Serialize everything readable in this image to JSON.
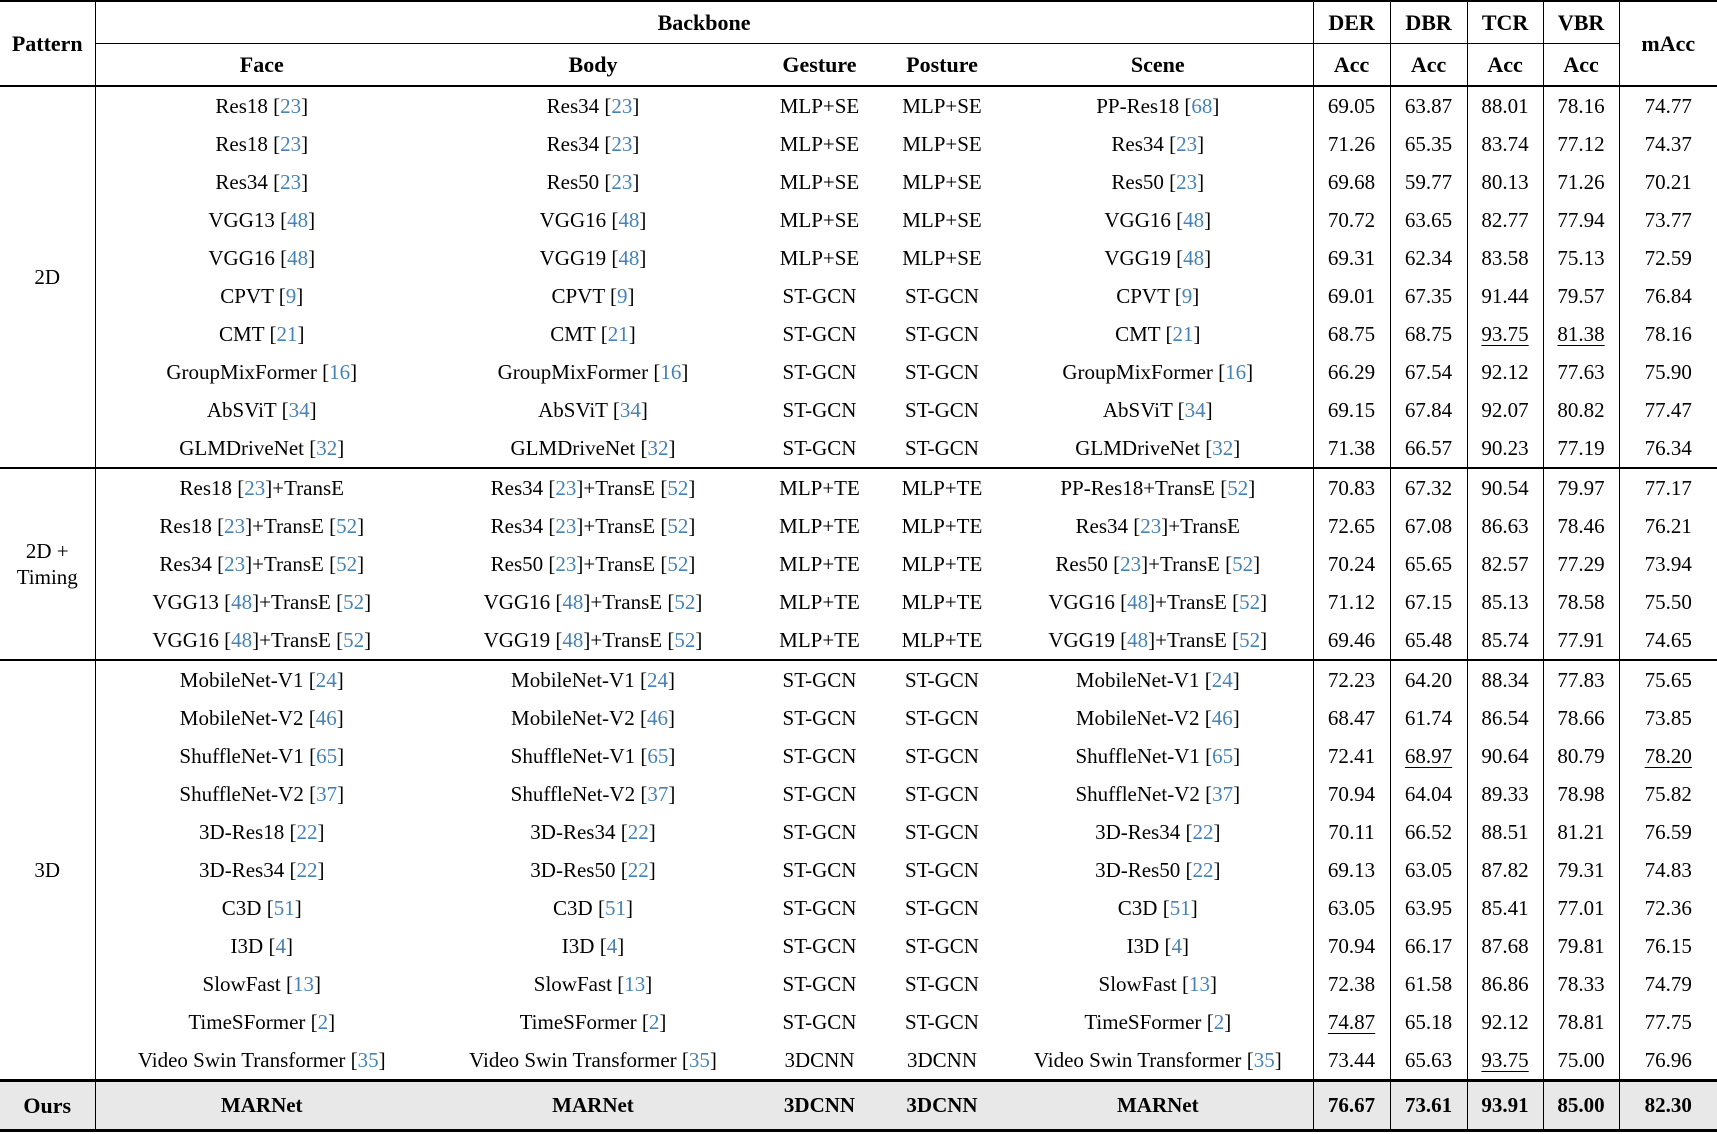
{
  "header": {
    "pattern": "Pattern",
    "backbone": "Backbone",
    "sub_columns": [
      "Face",
      "Body",
      "Gesture",
      "Posture",
      "Scene"
    ],
    "metrics": [
      "DER",
      "DBR",
      "TCR",
      "VBR"
    ],
    "metric_sub": "Acc",
    "macc": "mAcc"
  },
  "style": {
    "citation_color": "#4682b4",
    "ours_highlight_color": "#e8e8e8"
  },
  "groups": [
    {
      "pattern": "2D",
      "rows": [
        {
          "face": "Res18 [23]",
          "body": "Res34 [23]",
          "gesture": "MLP+SE",
          "posture": "MLP+SE",
          "scene": "PP-Res18 [68]",
          "values": [
            "69.05",
            "63.87",
            "88.01",
            "78.16",
            "74.77"
          ],
          "underline": []
        },
        {
          "face": "Res18 [23]",
          "body": "Res34 [23]",
          "gesture": "MLP+SE",
          "posture": "MLP+SE",
          "scene": "Res34 [23]",
          "values": [
            "71.26",
            "65.35",
            "83.74",
            "77.12",
            "74.37"
          ],
          "underline": []
        },
        {
          "face": "Res34 [23]",
          "body": "Res50 [23]",
          "gesture": "MLP+SE",
          "posture": "MLP+SE",
          "scene": "Res50 [23]",
          "values": [
            "69.68",
            "59.77",
            "80.13",
            "71.26",
            "70.21"
          ],
          "underline": []
        },
        {
          "face": "VGG13 [48]",
          "body": "VGG16 [48]",
          "gesture": "MLP+SE",
          "posture": "MLP+SE",
          "scene": "VGG16 [48]",
          "values": [
            "70.72",
            "63.65",
            "82.77",
            "77.94",
            "73.77"
          ],
          "underline": []
        },
        {
          "face": "VGG16 [48]",
          "body": "VGG19 [48]",
          "gesture": "MLP+SE",
          "posture": "MLP+SE",
          "scene": "VGG19 [48]",
          "values": [
            "69.31",
            "62.34",
            "83.58",
            "75.13",
            "72.59"
          ],
          "underline": []
        },
        {
          "face": "CPVT [9]",
          "body": "CPVT [9]",
          "gesture": "ST-GCN",
          "posture": "ST-GCN",
          "scene": "CPVT [9]",
          "values": [
            "69.01",
            "67.35",
            "91.44",
            "79.57",
            "76.84"
          ],
          "underline": []
        },
        {
          "face": "CMT [21]",
          "body": "CMT [21]",
          "gesture": "ST-GCN",
          "posture": "ST-GCN",
          "scene": "CMT [21]",
          "values": [
            "68.75",
            "68.75",
            "93.75",
            "81.38",
            "78.16"
          ],
          "underline": [
            2,
            3
          ]
        },
        {
          "face": "GroupMixFormer [16]",
          "body": "GroupMixFormer [16]",
          "gesture": "ST-GCN",
          "posture": "ST-GCN",
          "scene": "GroupMixFormer [16]",
          "values": [
            "66.29",
            "67.54",
            "92.12",
            "77.63",
            "75.90"
          ],
          "underline": []
        },
        {
          "face": "AbSViT [34]",
          "body": "AbSViT [34]",
          "gesture": "ST-GCN",
          "posture": "ST-GCN",
          "scene": "AbSViT [34]",
          "values": [
            "69.15",
            "67.84",
            "92.07",
            "80.82",
            "77.47"
          ],
          "underline": []
        },
        {
          "face": "GLMDriveNet [32]",
          "body": "GLMDriveNet [32]",
          "gesture": "ST-GCN",
          "posture": "ST-GCN",
          "scene": "GLMDriveNet [32]",
          "values": [
            "71.38",
            "66.57",
            "90.23",
            "77.19",
            "76.34"
          ],
          "underline": []
        }
      ]
    },
    {
      "pattern": "2D + Timing",
      "rows": [
        {
          "face": "Res18 [23]+TransE",
          "body": "Res34 [23]+TransE [52]",
          "gesture": "MLP+TE",
          "posture": "MLP+TE",
          "scene": "PP-Res18+TransE [52]",
          "values": [
            "70.83",
            "67.32",
            "90.54",
            "79.97",
            "77.17"
          ],
          "underline": []
        },
        {
          "face": "Res18 [23]+TransE [52]",
          "body": "Res34 [23]+TransE [52]",
          "gesture": "MLP+TE",
          "posture": "MLP+TE",
          "scene": "Res34 [23]+TransE",
          "values": [
            "72.65",
            "67.08",
            "86.63",
            "78.46",
            "76.21"
          ],
          "underline": []
        },
        {
          "face": "Res34 [23]+TransE [52]",
          "body": "Res50 [23]+TransE [52]",
          "gesture": "MLP+TE",
          "posture": "MLP+TE",
          "scene": "Res50 [23]+TransE [52]",
          "values": [
            "70.24",
            "65.65",
            "82.57",
            "77.29",
            "73.94"
          ],
          "underline": []
        },
        {
          "face": "VGG13 [48]+TransE [52]",
          "body": "VGG16 [48]+TransE [52]",
          "gesture": "MLP+TE",
          "posture": "MLP+TE",
          "scene": "VGG16 [48]+TransE [52]",
          "values": [
            "71.12",
            "67.15",
            "85.13",
            "78.58",
            "75.50"
          ],
          "underline": []
        },
        {
          "face": "VGG16 [48]+TransE [52]",
          "body": "VGG19 [48]+TransE [52]",
          "gesture": "MLP+TE",
          "posture": "MLP+TE",
          "scene": "VGG19 [48]+TransE [52]",
          "values": [
            "69.46",
            "65.48",
            "85.74",
            "77.91",
            "74.65"
          ],
          "underline": []
        }
      ]
    },
    {
      "pattern": "3D",
      "rows": [
        {
          "face": "MobileNet-V1 [24]",
          "body": "MobileNet-V1 [24]",
          "gesture": "ST-GCN",
          "posture": "ST-GCN",
          "scene": "MobileNet-V1 [24]",
          "values": [
            "72.23",
            "64.20",
            "88.34",
            "77.83",
            "75.65"
          ],
          "underline": []
        },
        {
          "face": "MobileNet-V2 [46]",
          "body": "MobileNet-V2 [46]",
          "gesture": "ST-GCN",
          "posture": "ST-GCN",
          "scene": "MobileNet-V2 [46]",
          "values": [
            "68.47",
            "61.74",
            "86.54",
            "78.66",
            "73.85"
          ],
          "underline": []
        },
        {
          "face": "ShuffleNet-V1 [65]",
          "body": "ShuffleNet-V1 [65]",
          "gesture": "ST-GCN",
          "posture": "ST-GCN",
          "scene": "ShuffleNet-V1 [65]",
          "values": [
            "72.41",
            "68.97",
            "90.64",
            "80.79",
            "78.20"
          ],
          "underline": [
            1,
            4
          ]
        },
        {
          "face": "ShuffleNet-V2 [37]",
          "body": "ShuffleNet-V2 [37]",
          "gesture": "ST-GCN",
          "posture": "ST-GCN",
          "scene": "ShuffleNet-V2 [37]",
          "values": [
            "70.94",
            "64.04",
            "89.33",
            "78.98",
            "75.82"
          ],
          "underline": []
        },
        {
          "face": "3D-Res18 [22]",
          "body": "3D-Res34 [22]",
          "gesture": "ST-GCN",
          "posture": "ST-GCN",
          "scene": "3D-Res34 [22]",
          "values": [
            "70.11",
            "66.52",
            "88.51",
            "81.21",
            "76.59"
          ],
          "underline": []
        },
        {
          "face": "3D-Res34 [22]",
          "body": "3D-Res50 [22]",
          "gesture": "ST-GCN",
          "posture": "ST-GCN",
          "scene": "3D-Res50 [22]",
          "values": [
            "69.13",
            "63.05",
            "87.82",
            "79.31",
            "74.83"
          ],
          "underline": []
        },
        {
          "face": "C3D [51]",
          "body": "C3D [51]",
          "gesture": "ST-GCN",
          "posture": "ST-GCN",
          "scene": "C3D [51]",
          "values": [
            "63.05",
            "63.95",
            "85.41",
            "77.01",
            "72.36"
          ],
          "underline": []
        },
        {
          "face": "I3D [4]",
          "body": "I3D [4]",
          "gesture": "ST-GCN",
          "posture": "ST-GCN",
          "scene": "I3D [4]",
          "values": [
            "70.94",
            "66.17",
            "87.68",
            "79.81",
            "76.15"
          ],
          "underline": []
        },
        {
          "face": "SlowFast [13]",
          "body": "SlowFast [13]",
          "gesture": "ST-GCN",
          "posture": "ST-GCN",
          "scene": "SlowFast [13]",
          "values": [
            "72.38",
            "61.58",
            "86.86",
            "78.33",
            "74.79"
          ],
          "underline": []
        },
        {
          "face": "TimeSFormer [2]",
          "body": "TimeSFormer [2]",
          "gesture": "ST-GCN",
          "posture": "ST-GCN",
          "scene": "TimeSFormer [2]",
          "values": [
            "74.87",
            "65.18",
            "92.12",
            "78.81",
            "77.75"
          ],
          "underline": [
            0
          ]
        },
        {
          "face": "Video Swin Transformer [35]",
          "body": "Video Swin Transformer [35]",
          "gesture": "3DCNN",
          "posture": "3DCNN",
          "scene": "Video Swin Transformer [35]",
          "values": [
            "73.44",
            "65.63",
            "93.75",
            "75.00",
            "76.96"
          ],
          "underline": [
            2
          ]
        }
      ]
    }
  ],
  "ours": {
    "pattern": "Ours",
    "face": "MARNet",
    "body": "MARNet",
    "gesture": "3DCNN",
    "posture": "3DCNN",
    "scene": "MARNet",
    "values": [
      "76.67",
      "73.61",
      "93.91",
      "85.00",
      "82.30"
    ],
    "underline": []
  }
}
